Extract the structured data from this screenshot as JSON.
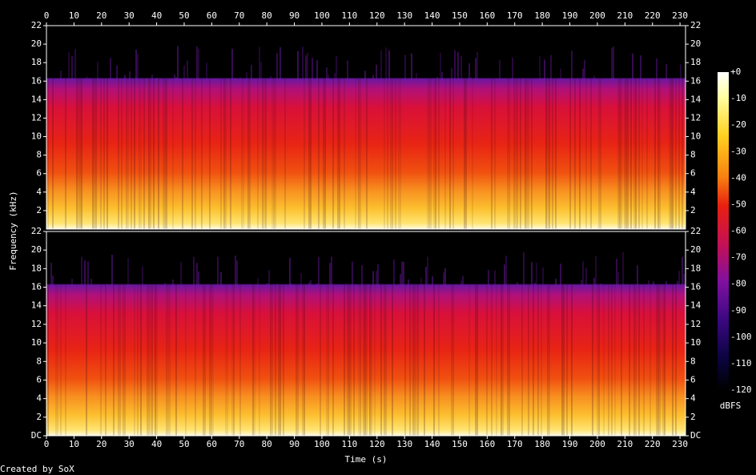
{
  "chart_data": {
    "type": "spectrogram",
    "x_label": "Time (s)",
    "y_label": "Frequency (kHz)",
    "credit": "Created by SoX",
    "xlim": [
      0,
      232
    ],
    "xticks": [
      0,
      10,
      20,
      30,
      40,
      50,
      60,
      70,
      80,
      90,
      100,
      110,
      120,
      130,
      140,
      150,
      160,
      170,
      180,
      190,
      200,
      210,
      220,
      230
    ],
    "channels": [
      {
        "ylim": [
          0,
          22
        ],
        "yticks": [
          2,
          4,
          6,
          8,
          10,
          12,
          14,
          16,
          18,
          20,
          22
        ]
      },
      {
        "ylim": [
          0,
          22
        ],
        "yticks": [
          {
            "value": 0,
            "label": "DC"
          },
          2,
          4,
          6,
          8,
          10,
          12,
          14,
          16,
          18,
          20,
          22
        ]
      }
    ],
    "colorbar": {
      "label": "dBFS",
      "lim": [
        -120,
        0
      ],
      "ticks": [
        {
          "value": 0,
          "label": "+0"
        },
        -10,
        -20,
        -30,
        -40,
        -50,
        -60,
        -70,
        -80,
        -90,
        -100,
        -110,
        -120
      ]
    }
  }
}
